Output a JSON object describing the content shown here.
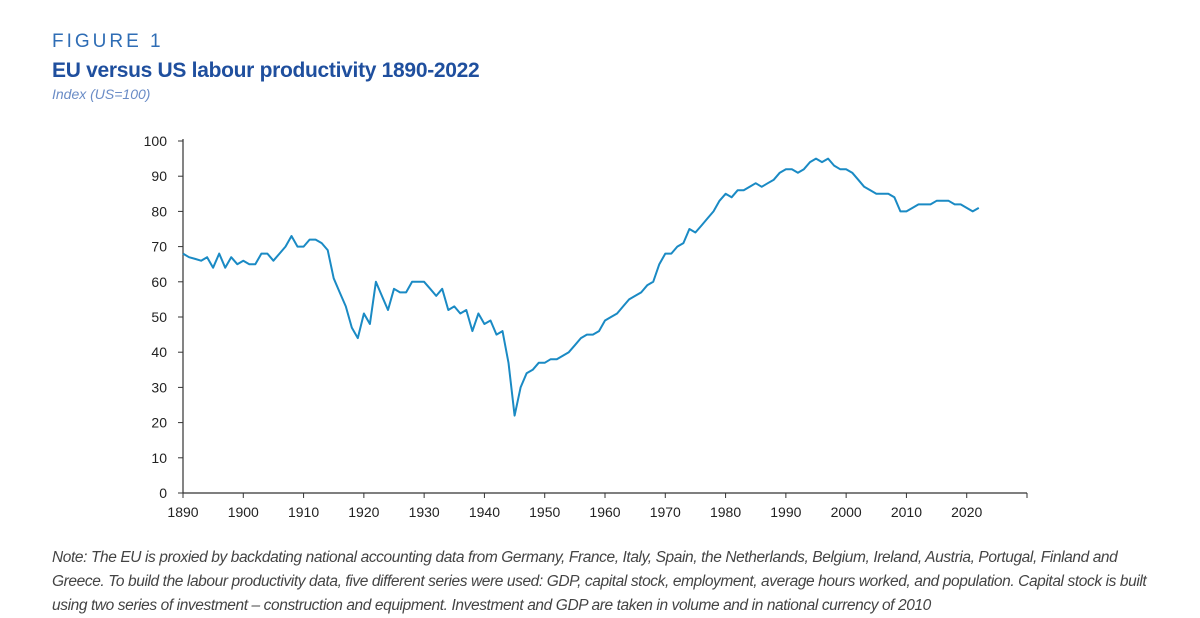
{
  "figure_label": "FIGURE 1",
  "title": "EU versus US labour productivity 1890-2022",
  "subtitle": "Index (US=100)",
  "note": "Note: The EU is proxied by backdating national accounting data from Germany, France, Italy, Spain, the Netherlands, Belgium, Ireland, Austria, Portugal, Finland and Greece. To build the labour productivity data, five different series were used: GDP, capital stock, employment, average hours worked, and population. Capital stock is built using two series of investment – construction and equipment. Investment and GDP are taken in volume and in national currency of 2010",
  "colors": {
    "line": "#1a8ac4",
    "title": "#1f4f9e",
    "axis": "#333333"
  },
  "chart_data": {
    "type": "line",
    "xlim": [
      1890,
      2030
    ],
    "ylim": [
      0,
      100
    ],
    "x_ticks": [
      1890,
      1900,
      1910,
      1920,
      1930,
      1940,
      1950,
      1960,
      1970,
      1980,
      1990,
      2000,
      2010,
      2020
    ],
    "y_ticks": [
      0,
      10,
      20,
      30,
      40,
      50,
      60,
      70,
      80,
      90,
      100
    ],
    "grid": false,
    "x": [
      1890,
      1891,
      1892,
      1893,
      1894,
      1895,
      1896,
      1897,
      1898,
      1899,
      1900,
      1901,
      1902,
      1903,
      1904,
      1905,
      1906,
      1907,
      1908,
      1909,
      1910,
      1911,
      1912,
      1913,
      1914,
      1915,
      1916,
      1917,
      1918,
      1919,
      1920,
      1921,
      1922,
      1923,
      1924,
      1925,
      1926,
      1927,
      1928,
      1929,
      1930,
      1931,
      1932,
      1933,
      1934,
      1935,
      1936,
      1937,
      1938,
      1939,
      1940,
      1941,
      1942,
      1943,
      1944,
      1945,
      1946,
      1947,
      1948,
      1949,
      1950,
      1951,
      1952,
      1953,
      1954,
      1955,
      1956,
      1957,
      1958,
      1959,
      1960,
      1961,
      1962,
      1963,
      1964,
      1965,
      1966,
      1967,
      1968,
      1969,
      1970,
      1971,
      1972,
      1973,
      1974,
      1975,
      1976,
      1977,
      1978,
      1979,
      1980,
      1981,
      1982,
      1983,
      1984,
      1985,
      1986,
      1987,
      1988,
      1989,
      1990,
      1991,
      1992,
      1993,
      1994,
      1995,
      1996,
      1997,
      1998,
      1999,
      2000,
      2001,
      2002,
      2003,
      2004,
      2005,
      2006,
      2007,
      2008,
      2009,
      2010,
      2011,
      2012,
      2013,
      2014,
      2015,
      2016,
      2017,
      2018,
      2019,
      2020,
      2021,
      2022
    ],
    "y": [
      68,
      67,
      66.5,
      66,
      67,
      64,
      68,
      64,
      67,
      65,
      66,
      65,
      65,
      68,
      68,
      66,
      68,
      70,
      73,
      70,
      70,
      72,
      72,
      71,
      69,
      61,
      57,
      53,
      47,
      44,
      51,
      48,
      60,
      56,
      52,
      58,
      57,
      57,
      60,
      60,
      60,
      58,
      56,
      58,
      52,
      53,
      51,
      52,
      46,
      51,
      48,
      49,
      45,
      46,
      37,
      22,
      30,
      34,
      35,
      37,
      37,
      38,
      38,
      39,
      40,
      42,
      44,
      45,
      45,
      46,
      49,
      50,
      51,
      53,
      55,
      56,
      57,
      59,
      60,
      65,
      68,
      68,
      70,
      71,
      75,
      74,
      76,
      78,
      80,
      83,
      85,
      84,
      86,
      86,
      87,
      88,
      87,
      88,
      89,
      91,
      92,
      92,
      91,
      92,
      94,
      95,
      94,
      95,
      93,
      92,
      92,
      91,
      89,
      87,
      86,
      85,
      85,
      85,
      84,
      80,
      80,
      81,
      82,
      82,
      82,
      83,
      83,
      83,
      82,
      82,
      81,
      80,
      81
    ]
  }
}
